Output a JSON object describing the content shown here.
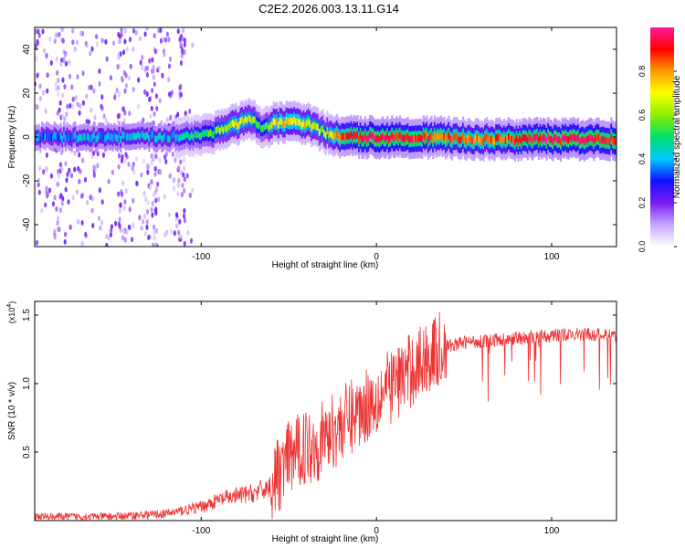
{
  "title": "C2E2.2026.003.13.11.G14",
  "colorbar": {
    "label": "Normalized spectral amplitude",
    "ticks": [
      "0.0",
      "0.2",
      "0.4",
      "0.6",
      "0.8"
    ],
    "tick_values": [
      0.0,
      0.2,
      0.4,
      0.6,
      0.8
    ],
    "range": [
      0,
      1
    ],
    "colors": [
      "#ffffff",
      "#c6a6ff",
      "#7a1cf0",
      "#1010ff",
      "#00c8ff",
      "#00e06a",
      "#8af000",
      "#ffff00",
      "#ff9a00",
      "#ff0000",
      "#ff1aa0"
    ]
  },
  "chart_data": [
    {
      "type": "heatmap",
      "name": "spectrogram",
      "xlabel": "Height of straight line (km)",
      "ylabel": "Frequency (Hz)",
      "xlim": [
        -195,
        137
      ],
      "ylim": [
        -50,
        50
      ],
      "xticks": [
        -100,
        0,
        100
      ],
      "xtick_labels": [
        "-100",
        "0",
        "100"
      ],
      "yticks": [
        -40,
        -20,
        0,
        20,
        40
      ],
      "ytick_labels": [
        "-40",
        "-20",
        "0",
        "20",
        "40"
      ],
      "ridge": {
        "x": [
          -195,
          -160,
          -120,
          -100,
          -90,
          -80,
          -72,
          -65,
          -60,
          -50,
          -40,
          -30,
          -20,
          0,
          20,
          60,
          100,
          137
        ],
        "center_hz": [
          0,
          0,
          0,
          1,
          3,
          6,
          8,
          3,
          6,
          7,
          6,
          2,
          0,
          0,
          0,
          -1,
          -1,
          -1
        ],
        "amplitude": [
          0.35,
          0.4,
          0.4,
          0.5,
          0.6,
          0.7,
          0.65,
          0.5,
          0.7,
          0.75,
          0.7,
          0.6,
          0.85,
          0.95,
          0.9,
          0.8,
          0.95,
          0.9
        ]
      },
      "noise_x_range": [
        -195,
        -105
      ]
    },
    {
      "type": "line",
      "name": "snr",
      "xlabel": "Height of straight line (km)",
      "ylabel": "SNR (10 * v/v)",
      "y_multiplier_label": "(x10",
      "y_multiplier_exp": "4",
      "y_multiplier_close": ")",
      "xlim": [
        -195,
        137
      ],
      "ylim": [
        0,
        1.6
      ],
      "xticks": [
        -100,
        0,
        100
      ],
      "xtick_labels": [
        "-100",
        "0",
        "100"
      ],
      "yticks": [
        0.5,
        1.0,
        1.5
      ],
      "ytick_labels": [
        "0.5",
        "1.0",
        "1.5"
      ],
      "color": "#ee3333",
      "x": [
        -195,
        -150,
        -120,
        -100,
        -90,
        -80,
        -70,
        -60,
        -55,
        -50,
        -45,
        -40,
        -35,
        -30,
        -25,
        -20,
        -15,
        -10,
        -5,
        0,
        10,
        20,
        30,
        40,
        50,
        60,
        80,
        100,
        120,
        137
      ],
      "y": [
        0.03,
        0.03,
        0.05,
        0.1,
        0.15,
        0.18,
        0.2,
        0.25,
        0.35,
        0.45,
        0.5,
        0.55,
        0.55,
        0.6,
        0.65,
        0.7,
        0.75,
        0.8,
        0.85,
        0.9,
        1.0,
        1.1,
        1.2,
        1.27,
        1.3,
        1.31,
        1.33,
        1.35,
        1.36,
        1.35
      ]
    }
  ]
}
